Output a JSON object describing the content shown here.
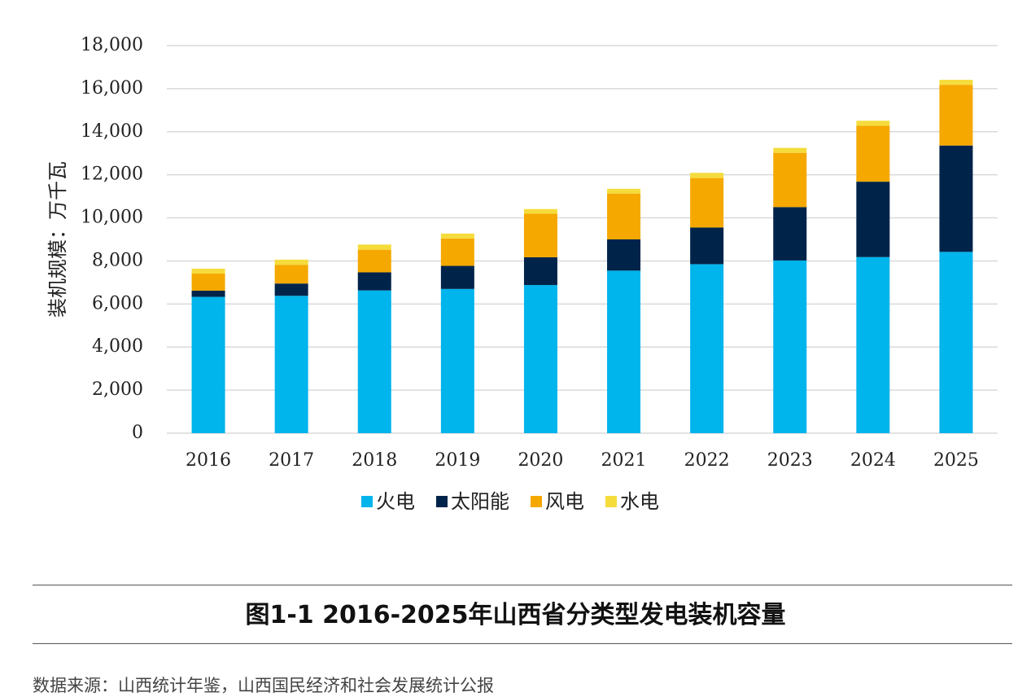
{
  "chart_data": {
    "type": "bar",
    "stacked": true,
    "categories": [
      "2016",
      "2017",
      "2018",
      "2019",
      "2020",
      "2021",
      "2022",
      "2023",
      "2024",
      "2025"
    ],
    "series": [
      {
        "name": "火电",
        "color": "#00B4EC",
        "values": [
          6330,
          6380,
          6630,
          6700,
          6880,
          7550,
          7850,
          8020,
          8180,
          8420
        ]
      },
      {
        "name": "太阳能",
        "color": "#00234A",
        "values": [
          290,
          570,
          840,
          1070,
          1290,
          1450,
          1700,
          2480,
          3500,
          4940
        ]
      },
      {
        "name": "风电",
        "color": "#F5A800",
        "values": [
          790,
          870,
          1050,
          1270,
          2020,
          2130,
          2300,
          2520,
          2600,
          2820
        ]
      },
      {
        "name": "水电",
        "color": "#F5DC3C",
        "values": [
          230,
          240,
          240,
          230,
          220,
          220,
          240,
          230,
          230,
          230
        ]
      }
    ],
    "ylabel": "装机规模：万千瓦",
    "ylim": [
      0,
      18000
    ],
    "yticks": [
      "0",
      "2,000",
      "4,000",
      "6,000",
      "8,000",
      "10,000",
      "12,000",
      "14,000",
      "16,000",
      "18,000"
    ],
    "ytick_values": [
      0,
      2000,
      4000,
      6000,
      8000,
      10000,
      12000,
      14000,
      16000,
      18000
    ],
    "grid": true,
    "legend_position": "bottom"
  },
  "caption": "图1-1 2016-2025年山西省分类型发电装机容量",
  "source": "数据来源：山西统计年鉴，山西国民经济和社会发展统计公报"
}
